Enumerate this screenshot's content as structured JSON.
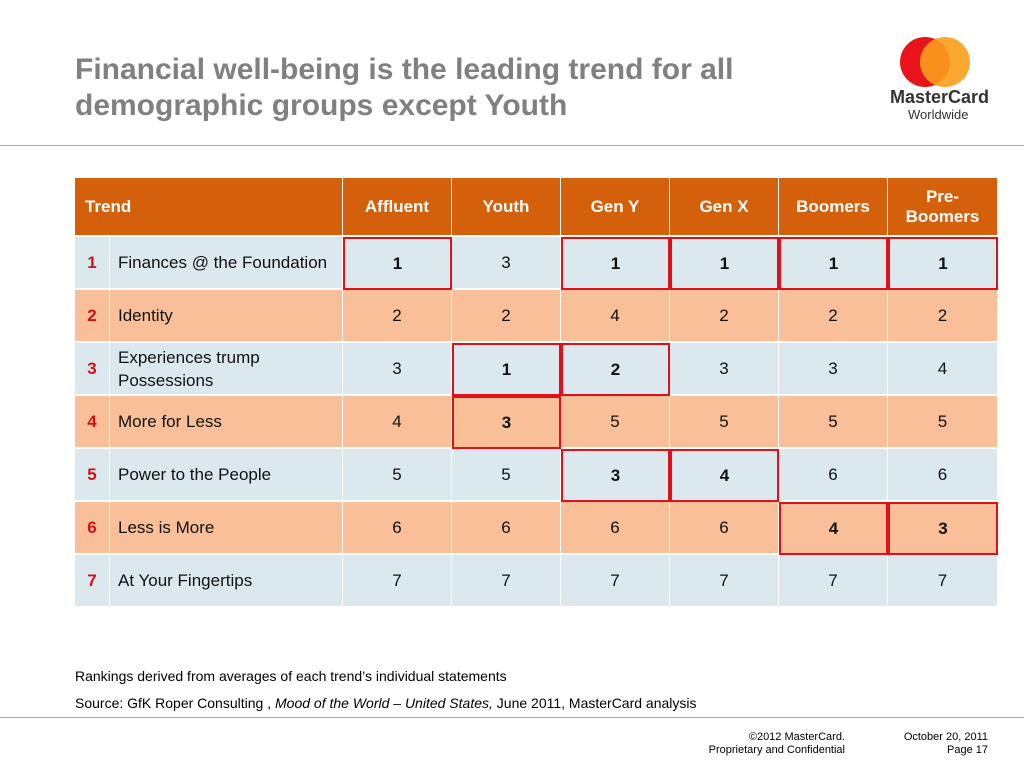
{
  "header": {
    "title": "Financial well-being is the leading trend for all demographic groups except Youth",
    "logo_name": "MasterCard",
    "logo_sub": "Worldwide"
  },
  "table": {
    "columns": [
      "Trend",
      "Affluent",
      "Youth",
      "Gen Y",
      "Gen X",
      "Boomers",
      "Pre-Boomers"
    ],
    "rows": [
      {
        "rank": 1,
        "trend": "Finances @ the Foundation",
        "values": [
          1,
          3,
          1,
          1,
          1,
          1
        ],
        "highlight": [
          true,
          false,
          true,
          true,
          true,
          true
        ]
      },
      {
        "rank": 2,
        "trend": "Identity",
        "values": [
          2,
          2,
          4,
          2,
          2,
          2
        ],
        "highlight": [
          false,
          false,
          false,
          false,
          false,
          false
        ]
      },
      {
        "rank": 3,
        "trend": "Experiences trump Possessions",
        "values": [
          3,
          1,
          2,
          3,
          3,
          4
        ],
        "highlight": [
          false,
          true,
          true,
          false,
          false,
          false
        ]
      },
      {
        "rank": 4,
        "trend": "More for Less",
        "values": [
          4,
          3,
          5,
          5,
          5,
          5
        ],
        "highlight": [
          false,
          true,
          false,
          false,
          false,
          false
        ]
      },
      {
        "rank": 5,
        "trend": "Power to the People",
        "values": [
          5,
          5,
          3,
          4,
          6,
          6
        ],
        "highlight": [
          false,
          false,
          true,
          true,
          false,
          false
        ]
      },
      {
        "rank": 6,
        "trend": "Less is More",
        "values": [
          6,
          6,
          6,
          6,
          4,
          3
        ],
        "highlight": [
          false,
          false,
          false,
          false,
          true,
          true
        ]
      },
      {
        "rank": 7,
        "trend": "At Your Fingertips",
        "values": [
          7,
          7,
          7,
          7,
          7,
          7
        ],
        "highlight": [
          false,
          false,
          false,
          false,
          false,
          false
        ]
      }
    ]
  },
  "notes": {
    "ranking": "Rankings derived from averages of each trend’s individual statements",
    "source": [
      "Source: GfK Roper Consulting , ",
      "Mood of the World – United States,",
      " June 2011, MasterCard analysis"
    ]
  },
  "footer": {
    "copyright": "©2012 MasterCard.",
    "confidential": "Proprietary and Confidential",
    "date": "October 20, 2011",
    "page": "Page 17"
  }
}
